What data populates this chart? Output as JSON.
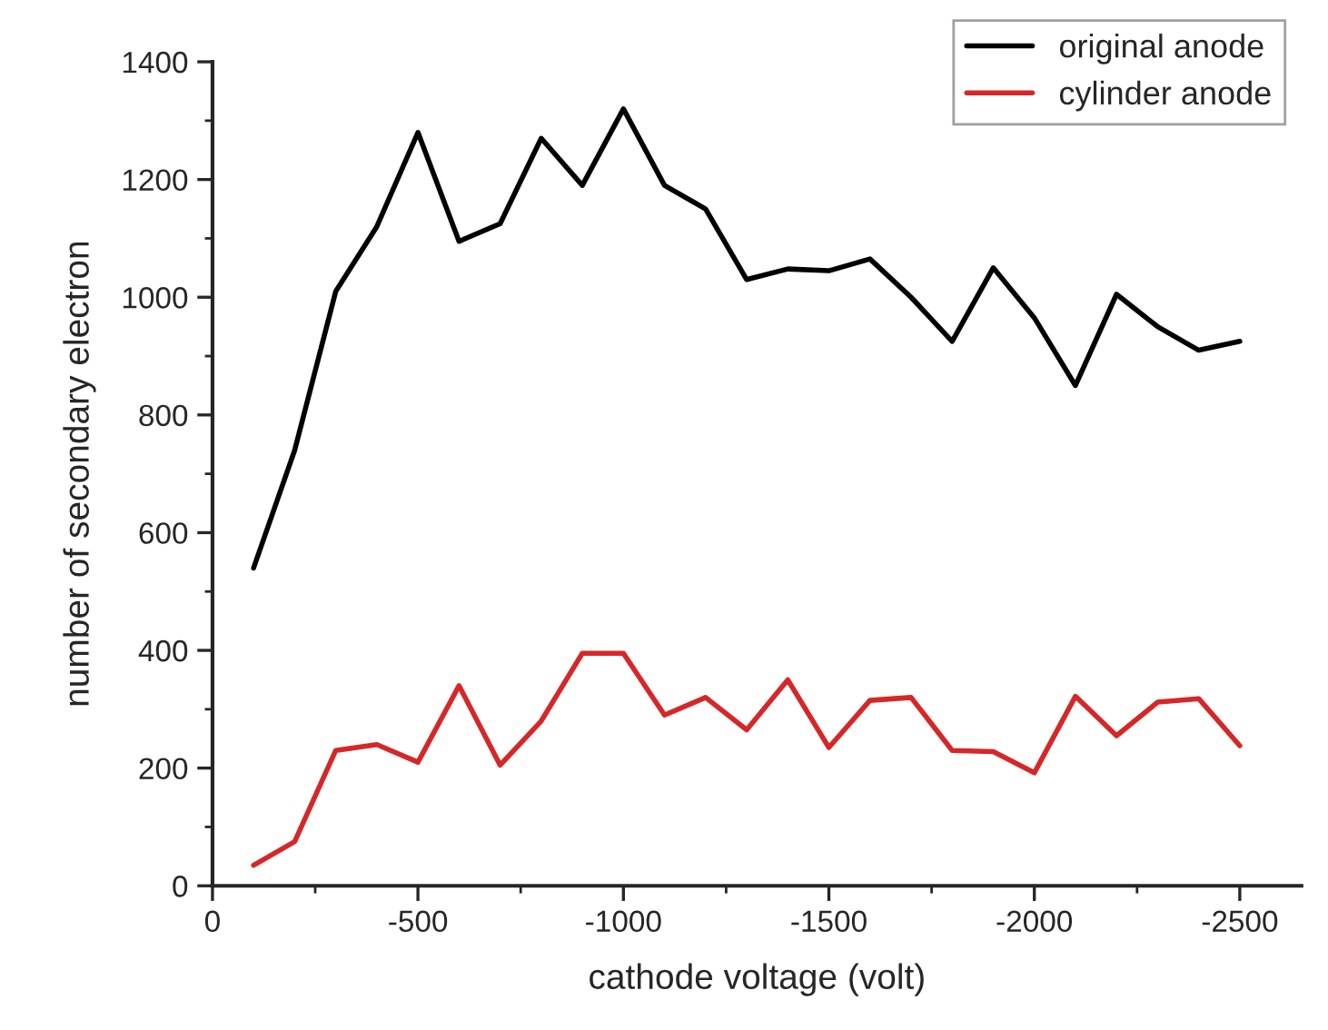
{
  "chart_data": {
    "type": "line",
    "xlabel": "cathode voltage (volt)",
    "ylabel": "number of secondary electron",
    "x": [
      -100,
      -200,
      -300,
      -400,
      -500,
      -600,
      -700,
      -800,
      -900,
      -1000,
      -1100,
      -1200,
      -1300,
      -1400,
      -1500,
      -1600,
      -1700,
      -1800,
      -1900,
      -2000,
      -2100,
      -2200,
      -2300,
      -2400,
      -2500
    ],
    "series": [
      {
        "name": "original anode",
        "color": "#000000",
        "values": [
          540,
          740,
          1010,
          1120,
          1280,
          1095,
          1125,
          1270,
          1190,
          1320,
          1190,
          1150,
          1030,
          1048,
          1045,
          1065,
          1000,
          925,
          1050,
          965,
          850,
          1005,
          950,
          910,
          925
        ]
      },
      {
        "name": "cylinder anode",
        "color": "#d62728",
        "values": [
          35,
          75,
          230,
          240,
          210,
          340,
          205,
          280,
          395,
          395,
          290,
          320,
          265,
          350,
          235,
          315,
          320,
          230,
          228,
          192,
          322,
          255,
          312,
          318,
          238
        ]
      }
    ],
    "xlim": [
      0,
      -2650
    ],
    "xticks": [
      0,
      -500,
      -1000,
      -1500,
      -2000,
      -2500
    ],
    "ylim": [
      0,
      1400
    ],
    "yticks": [
      0,
      200,
      400,
      600,
      800,
      1000,
      1200,
      1400
    ],
    "legend": "top right",
    "grid": false,
    "marker": "none",
    "line_style": "solid"
  }
}
